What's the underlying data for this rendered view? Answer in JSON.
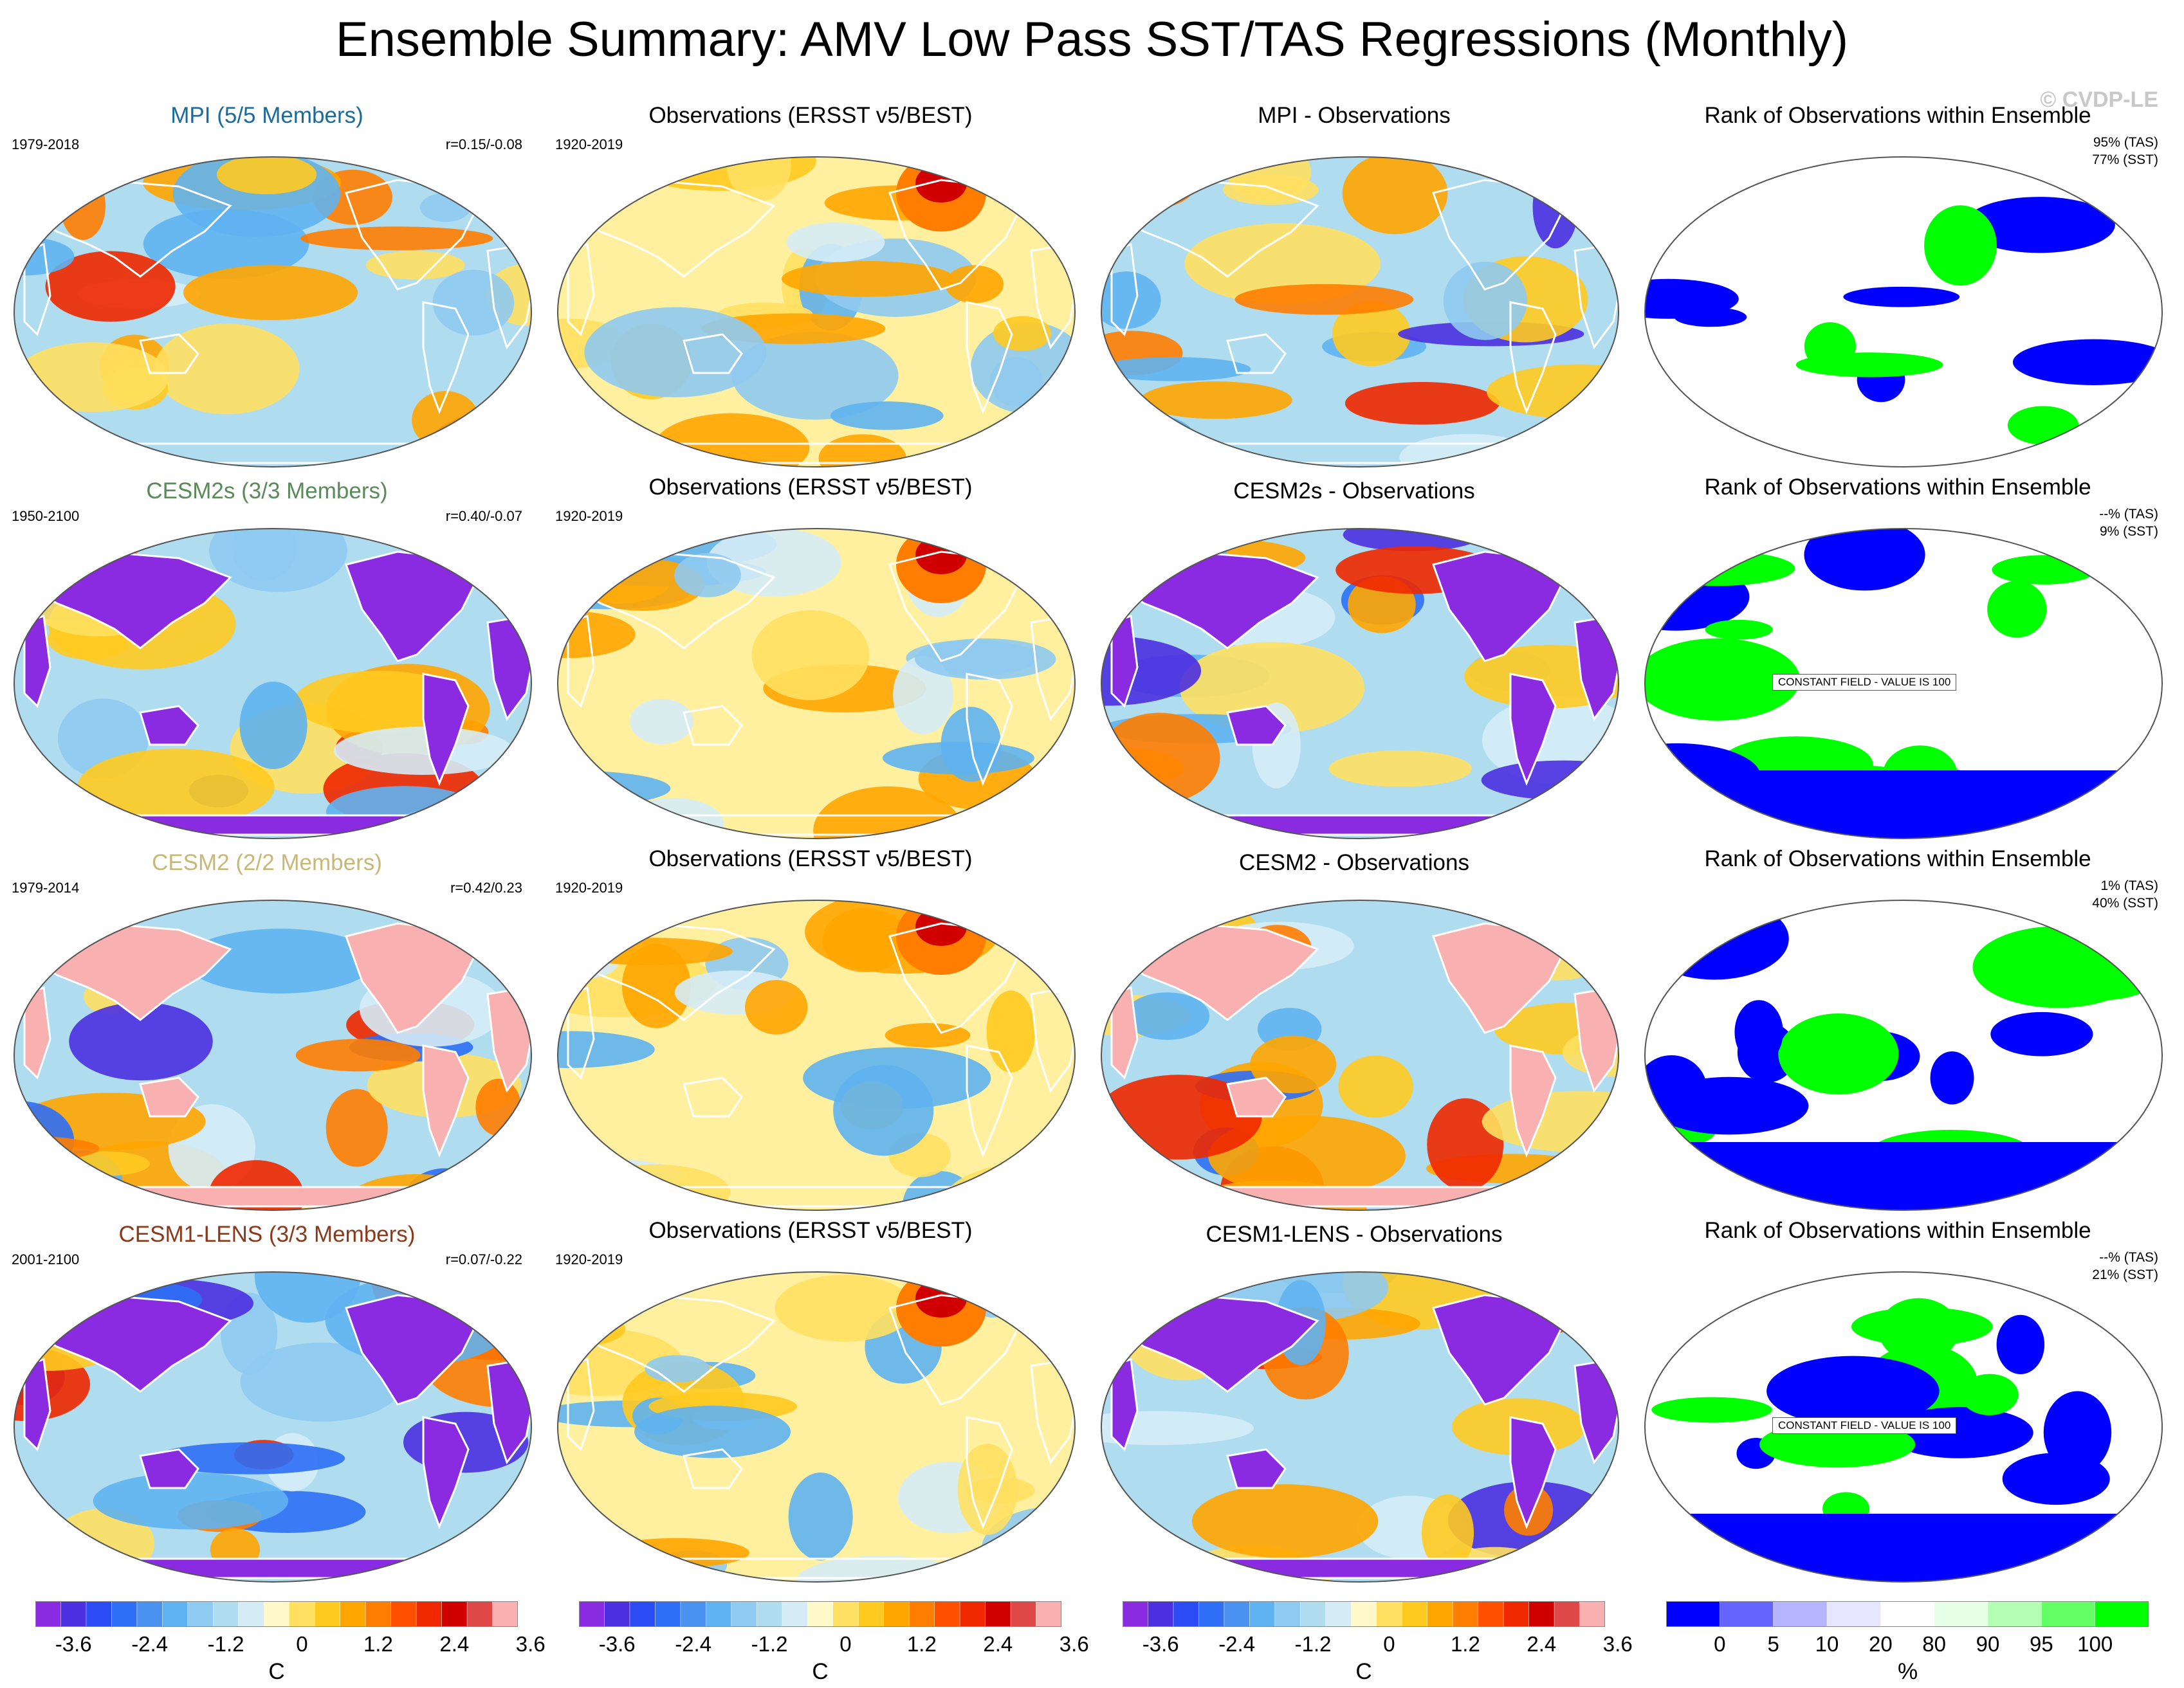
{
  "title": "Ensemble Summary: AMV Low Pass SST/TAS Regressions (Monthly)",
  "copyright": "© CVDP-LE",
  "rows": [
    {
      "model": {
        "title": "MPI (5/5 Members)",
        "title_color": "#1a6a9a",
        "years": "1979-2018",
        "corr": "r=0.15/-0.08",
        "land": "mixed"
      },
      "obs": {
        "title": "Observations (ERSST v5/BEST)",
        "years": "1920-2019"
      },
      "diff": {
        "title": "MPI - Observations",
        "land": "mixed"
      },
      "rank": {
        "title": "Rank of Observations within Ensemble",
        "tas": "95% (TAS)",
        "sst": "77% (SST)",
        "constant": ""
      }
    },
    {
      "model": {
        "title": "CESM2s (3/3 Members)",
        "title_color": "#5a8a5a",
        "years": "1950-2100",
        "corr": "r=0.40/-0.07",
        "land": "purple"
      },
      "obs": {
        "title": "Observations (ERSST v5/BEST)",
        "years": "1920-2019"
      },
      "diff": {
        "title": "CESM2s - Observations",
        "land": "purple"
      },
      "rank": {
        "title": "Rank of Observations within Ensemble",
        "tas": "--% (TAS)",
        "sst": "9% (SST)",
        "constant": "CONSTANT FIELD - VALUE IS 100"
      }
    },
    {
      "model": {
        "title": "CESM2 (2/2 Members)",
        "title_color": "#c8b878",
        "years": "1979-2014",
        "corr": "r=0.42/0.23",
        "land": "pink"
      },
      "obs": {
        "title": "Observations (ERSST v5/BEST)",
        "years": "1920-2019"
      },
      "diff": {
        "title": "CESM2 - Observations",
        "land": "pink"
      },
      "rank": {
        "title": "Rank of Observations within Ensemble",
        "tas": "1% (TAS)",
        "sst": "40% (SST)",
        "constant": ""
      }
    },
    {
      "model": {
        "title": "CESM1-LENS (3/3 Members)",
        "title_color": "#8a3a1a",
        "years": "2001-2100",
        "corr": "r=0.07/-0.22",
        "land": "purple"
      },
      "obs": {
        "title": "Observations (ERSST v5/BEST)",
        "years": "1920-2019"
      },
      "diff": {
        "title": "CESM1-LENS - Observations",
        "land": "purple"
      },
      "rank": {
        "title": "Rank of Observations within Ensemble",
        "tas": "--% (TAS)",
        "sst": "21% (SST)",
        "constant": "CONSTANT FIELD - VALUE IS 100"
      }
    }
  ],
  "colorbars": {
    "temperature": {
      "colors": [
        "#8a2be2",
        "#4b2fe0",
        "#2b4cf5",
        "#2e6ff5",
        "#4a91f0",
        "#5fb3f0",
        "#8fcaf0",
        "#b0dcf0",
        "#d5ecf7",
        "#fff8c8",
        "#ffe060",
        "#ffca20",
        "#ffa500",
        "#ff7d00",
        "#ff5000",
        "#f02800",
        "#d00000",
        "#e04848",
        "#f8b0b0"
      ],
      "ticks": [
        "-3.6",
        "-2.4",
        "-1.2",
        "0",
        "1.2",
        "2.4",
        "3.6"
      ],
      "unit": "C"
    },
    "rank": {
      "colors": [
        "#0000ff",
        "#6464ff",
        "#b4b4ff",
        "#e6e6ff",
        "#ffffff",
        "#e6ffe6",
        "#b4ffb4",
        "#64ff64",
        "#00ff00"
      ],
      "ticks": [
        "0",
        "5",
        "10",
        "20",
        "80",
        "90",
        "95",
        "100"
      ],
      "unit": "%"
    }
  },
  "chart_data": {
    "type": "heatmap",
    "title": "Ensemble Summary: AMV Low Pass SST/TAS Regressions (Monthly)",
    "projection": "Robinson (global)",
    "temperature_scale": {
      "unit": "C",
      "range": [
        -4.2,
        4.2
      ],
      "ticks": [
        -3.6,
        -2.4,
        -1.2,
        0,
        1.2,
        2.4,
        3.6
      ]
    },
    "rank_scale": {
      "unit": "%",
      "levels": [
        0,
        5,
        10,
        20,
        80,
        90,
        95,
        100
      ]
    },
    "panels": [
      {
        "row": 1,
        "column": "model",
        "name": "MPI (5/5 Members)",
        "years": "1979-2018",
        "pattern_correlation": [
          0.15,
          -0.08
        ]
      },
      {
        "row": 1,
        "column": "rank",
        "tas_percent": 95,
        "sst_percent": 77
      },
      {
        "row": 2,
        "column": "model",
        "name": "CESM2s (3/3 Members)",
        "years": "1950-2100",
        "pattern_correlation": [
          0.4,
          -0.07
        ]
      },
      {
        "row": 2,
        "column": "rank",
        "tas_percent": null,
        "sst_percent": 9
      },
      {
        "row": 3,
        "column": "model",
        "name": "CESM2 (2/2 Members)",
        "years": "1979-2014",
        "pattern_correlation": [
          0.42,
          0.23
        ]
      },
      {
        "row": 3,
        "column": "rank",
        "tas_percent": 1,
        "sst_percent": 40
      },
      {
        "row": 4,
        "column": "model",
        "name": "CESM1-LENS (3/3 Members)",
        "years": "2001-2100",
        "pattern_correlation": [
          0.07,
          -0.22
        ]
      },
      {
        "row": 4,
        "column": "rank",
        "tas_percent": null,
        "sst_percent": 21
      }
    ],
    "observations": {
      "name": "Observations (ERSST v5/BEST)",
      "years": "1920-2019"
    }
  }
}
